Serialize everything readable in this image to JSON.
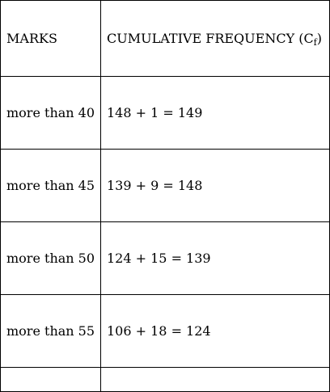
{
  "table": {
    "header": {
      "marks": "MARKS",
      "cf_prefix": "CUMULATIVE FREQUENCY (C",
      "cf_sub": "f",
      "cf_suffix": ")"
    },
    "rows": [
      {
        "marks": "more than 40",
        "cf": "148 + 1 = 149"
      },
      {
        "marks": "more than 45",
        "cf": "139 + 9 = 148"
      },
      {
        "marks": "more than 50",
        "cf": "124 + 15 = 139"
      },
      {
        "marks": "more than 55",
        "cf": "106 + 18 = 124"
      }
    ]
  }
}
